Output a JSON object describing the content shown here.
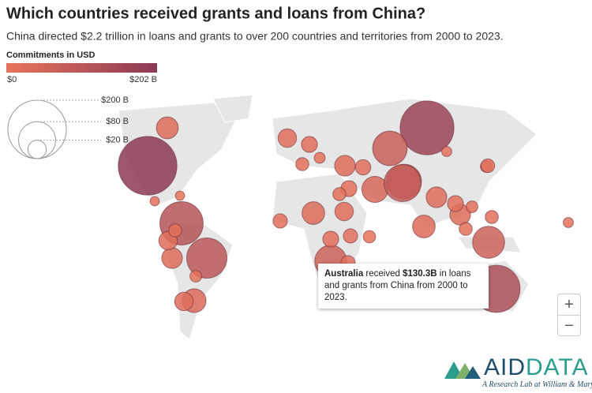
{
  "header": {
    "title": "Which countries received grants and loans from China?",
    "subtitle": "China directed $2.2 trillion in loans and grants to over 200 countries and territories from 2000 to 2023."
  },
  "legend": {
    "title": "Commitments in USD",
    "color_min": {
      "value": 0,
      "label": "$0"
    },
    "color_max": {
      "value": 202,
      "label": "$202 B"
    },
    "colors": [
      "#e8735a",
      "#8b3a55"
    ],
    "sizes": [
      {
        "value": 200,
        "label": "$200 B"
      },
      {
        "value": 80,
        "label": "$80 B"
      },
      {
        "value": 20,
        "label": "$20 B"
      }
    ]
  },
  "bubbles": [
    202,
    170,
    130.3,
    95,
    110,
    70,
    60,
    60,
    70,
    33,
    25,
    20,
    28,
    20,
    15,
    40,
    15,
    25,
    20,
    12,
    30,
    15,
    20,
    80,
    25,
    25,
    15,
    10,
    8,
    30,
    10,
    5,
    5,
    10,
    8,
    20,
    12,
    10,
    10,
    6,
    12,
    8,
    9,
    7,
    14,
    6,
    11
  ],
  "tooltip": {
    "country": "Australia",
    "text": " received ",
    "amount": "$130.3B",
    "text_end": " in loans and grants from China from 2000 to 2023."
  },
  "controls": {
    "zoom_in": "+",
    "zoom_out": "−"
  },
  "logo": {
    "part_1": "AID",
    "part_2": "DATA",
    "tagline": "A Research Lab at William & Mary"
  }
}
